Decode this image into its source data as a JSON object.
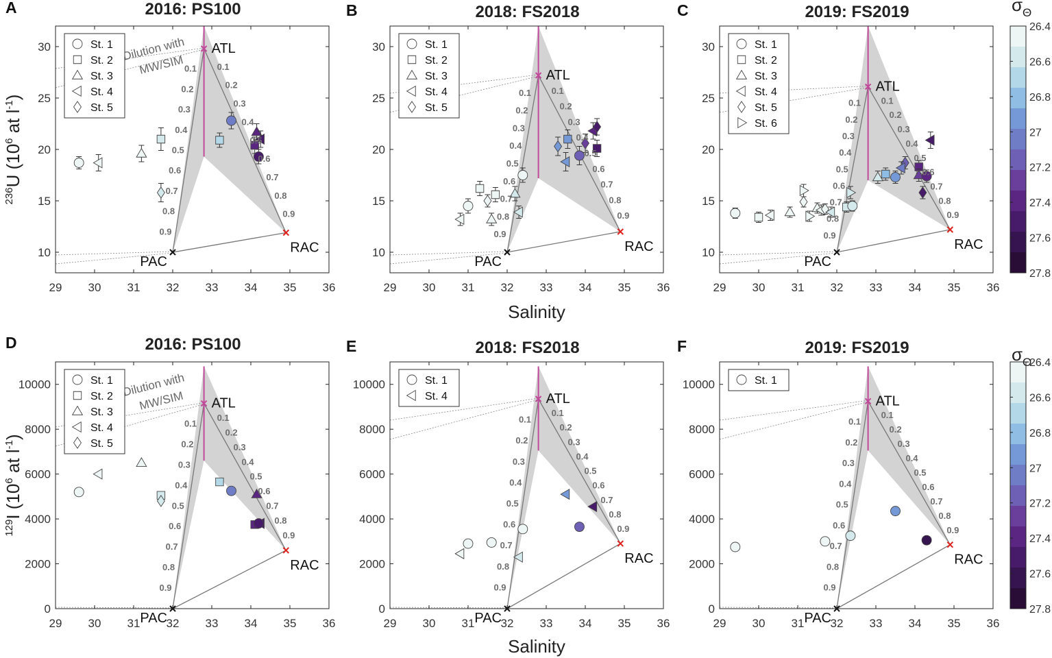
{
  "figure": {
    "xlabel": "Salinity",
    "endmembers": {
      "atl": "ATL",
      "pac": "PAC",
      "rac": "RAC"
    },
    "dilution_label": [
      "Dilution with",
      "MW/SIM"
    ],
    "fraction_labels": [
      "0.1",
      "0.2",
      "0.3",
      "0.4",
      "0.5",
      "0.6",
      "0.7",
      "0.8",
      "0.9"
    ],
    "colorbar": {
      "label": "σ",
      "sub": "Θ",
      "range": [
        26.4,
        27.8
      ],
      "ticks": [
        "26.4",
        "26.6",
        "26.8",
        "27",
        "27.2",
        "27.4",
        "27.6",
        "27.8"
      ],
      "colors": [
        "#edf6f4",
        "#d4e9ec",
        "#b3d8e8",
        "#8fbde3",
        "#7599d6",
        "#6f7dc6",
        "#6e60b4",
        "#6a3f9c",
        "#5a2682",
        "#481a6a",
        "#36144f",
        "#2a0d36"
      ]
    }
  },
  "chart_data": [
    {
      "panel": "A",
      "title": "2016: PS100",
      "type": "scatter",
      "ylabel_sup": "236",
      "ylabel": "U (10",
      "ylabel_sup2": "6",
      "ylabel_end": " at l",
      "ylabel_sup3": "-1",
      "ylabel_close": ")",
      "xlim": [
        29,
        36
      ],
      "ylim": [
        8,
        32
      ],
      "xticks": [
        29,
        30,
        31,
        32,
        33,
        34,
        35,
        36
      ],
      "yticks": [
        10,
        15,
        20,
        25,
        30
      ],
      "endmembers": {
        "atl": [
          32.8,
          29.8
        ],
        "pac": [
          32.0,
          10.0
        ],
        "rac": [
          34.9,
          11.9
        ]
      },
      "atl_range": [
        19.3,
        32.0
      ],
      "dilution": true,
      "legend": [
        "St. 1",
        "St. 2",
        "St. 3",
        "St. 4",
        "St. 5"
      ],
      "points": [
        {
          "st": 1,
          "x": 29.6,
          "y": 18.7,
          "err": 0.6,
          "sigma": 26.5
        },
        {
          "st": 4,
          "x": 30.1,
          "y": 18.7,
          "err": 0.8,
          "sigma": 26.5
        },
        {
          "st": 3,
          "x": 31.2,
          "y": 19.6,
          "err": 0.8,
          "sigma": 26.5
        },
        {
          "st": 2,
          "x": 31.7,
          "y": 21.0,
          "err": 1.1,
          "sigma": 26.55
        },
        {
          "st": 5,
          "x": 31.7,
          "y": 15.8,
          "err": 0.9,
          "sigma": 26.55
        },
        {
          "st": 2,
          "x": 33.2,
          "y": 20.9,
          "err": 0.7,
          "sigma": 26.7
        },
        {
          "st": 1,
          "x": 33.5,
          "y": 22.8,
          "err": 0.8,
          "sigma": 27.0
        },
        {
          "st": 3,
          "x": 34.15,
          "y": 21.7,
          "err": 0.8,
          "sigma": 27.4
        },
        {
          "st": 2,
          "x": 34.1,
          "y": 20.4,
          "err": 0.8,
          "sigma": 27.45
        },
        {
          "st": 4,
          "x": 34.25,
          "y": 21.0,
          "err": 0.8,
          "sigma": 27.5
        },
        {
          "st": 1,
          "x": 34.2,
          "y": 19.3,
          "err": 0.7,
          "sigma": 27.55
        }
      ]
    },
    {
      "panel": "B",
      "title": "2018: FS2018",
      "type": "scatter",
      "xlim": [
        29,
        36
      ],
      "ylim": [
        8,
        32
      ],
      "xticks": [
        29,
        30,
        31,
        32,
        33,
        34,
        35,
        36
      ],
      "yticks": [
        10,
        15,
        20,
        25,
        30
      ],
      "endmembers": {
        "atl": [
          32.8,
          27.2
        ],
        "pac": [
          32.0,
          10.0
        ],
        "rac": [
          34.9,
          12.0
        ]
      },
      "atl_range": [
        17.2,
        32.0
      ],
      "dilution": false,
      "legend": [
        "St. 1",
        "St. 2",
        "St. 3",
        "St. 4",
        "St. 5"
      ],
      "points": [
        {
          "st": 4,
          "x": 30.8,
          "y": 13.2,
          "err": 0.6,
          "sigma": 26.45
        },
        {
          "st": 1,
          "x": 31.0,
          "y": 14.5,
          "err": 0.7,
          "sigma": 26.45
        },
        {
          "st": 2,
          "x": 31.3,
          "y": 16.2,
          "err": 0.7,
          "sigma": 26.45
        },
        {
          "st": 5,
          "x": 31.5,
          "y": 15.0,
          "err": 0.6,
          "sigma": 26.5
        },
        {
          "st": 3,
          "x": 31.6,
          "y": 13.2,
          "err": 0.6,
          "sigma": 26.5
        },
        {
          "st": 2,
          "x": 31.7,
          "y": 15.6,
          "err": 0.7,
          "sigma": 26.5
        },
        {
          "st": 3,
          "x": 32.2,
          "y": 15.7,
          "err": 0.7,
          "sigma": 26.55
        },
        {
          "st": 4,
          "x": 32.3,
          "y": 13.9,
          "err": 0.6,
          "sigma": 26.55
        },
        {
          "st": 1,
          "x": 32.4,
          "y": 17.5,
          "err": 0.7,
          "sigma": 26.5
        },
        {
          "st": 5,
          "x": 33.3,
          "y": 20.3,
          "err": 0.9,
          "sigma": 26.9
        },
        {
          "st": 2,
          "x": 33.55,
          "y": 21.0,
          "err": 0.9,
          "sigma": 26.95
        },
        {
          "st": 4,
          "x": 33.5,
          "y": 18.8,
          "err": 0.9,
          "sigma": 26.95
        },
        {
          "st": 1,
          "x": 33.85,
          "y": 19.4,
          "err": 0.9,
          "sigma": 27.2
        },
        {
          "st": 5,
          "x": 34.0,
          "y": 20.6,
          "err": 0.9,
          "sigma": 27.3
        },
        {
          "st": 4,
          "x": 34.2,
          "y": 21.8,
          "err": 0.8,
          "sigma": 27.45
        },
        {
          "st": 5,
          "x": 34.3,
          "y": 22.2,
          "err": 0.8,
          "sigma": 27.5
        },
        {
          "st": 2,
          "x": 34.3,
          "y": 20.1,
          "err": 0.8,
          "sigma": 27.55
        }
      ]
    },
    {
      "panel": "C",
      "title": "2019: FS2019",
      "type": "scatter",
      "xlim": [
        29,
        36
      ],
      "ylim": [
        8,
        32
      ],
      "xticks": [
        29,
        30,
        31,
        32,
        33,
        34,
        35,
        36
      ],
      "yticks": [
        10,
        15,
        20,
        25,
        30
      ],
      "endmembers": {
        "atl": [
          32.8,
          26.1
        ],
        "pac": [
          32.0,
          10.0
        ],
        "rac": [
          34.9,
          12.2
        ]
      },
      "atl_range": [
        17.0,
        32.0
      ],
      "dilution": false,
      "legend": [
        "St. 1",
        "St. 2",
        "St. 3",
        "St. 4",
        "St. 5",
        "St. 6"
      ],
      "points": [
        {
          "st": 1,
          "x": 29.4,
          "y": 13.8,
          "err": 0.5,
          "sigma": 26.45
        },
        {
          "st": 2,
          "x": 30.0,
          "y": 13.4,
          "err": 0.5,
          "sigma": 26.45
        },
        {
          "st": 4,
          "x": 30.3,
          "y": 13.6,
          "err": 0.5,
          "sigma": 26.45
        },
        {
          "st": 3,
          "x": 30.8,
          "y": 13.9,
          "err": 0.5,
          "sigma": 26.45
        },
        {
          "st": 6,
          "x": 31.15,
          "y": 16.0,
          "err": 0.6,
          "sigma": 26.5
        },
        {
          "st": 5,
          "x": 31.15,
          "y": 14.9,
          "err": 0.5,
          "sigma": 26.5
        },
        {
          "st": 6,
          "x": 31.3,
          "y": 13.5,
          "err": 0.5,
          "sigma": 26.5
        },
        {
          "st": 3,
          "x": 31.5,
          "y": 14.3,
          "err": 0.5,
          "sigma": 26.5
        },
        {
          "st": 4,
          "x": 31.6,
          "y": 14.1,
          "err": 0.5,
          "sigma": 26.5
        },
        {
          "st": 5,
          "x": 31.7,
          "y": 14.2,
          "err": 0.5,
          "sigma": 26.5
        },
        {
          "st": 4,
          "x": 31.85,
          "y": 13.9,
          "err": 0.5,
          "sigma": 26.55
        },
        {
          "st": 2,
          "x": 32.25,
          "y": 14.4,
          "err": 0.5,
          "sigma": 26.55
        },
        {
          "st": 1,
          "x": 32.4,
          "y": 14.5,
          "err": 0.5,
          "sigma": 26.55
        },
        {
          "st": 6,
          "x": 32.35,
          "y": 15.8,
          "err": 0.6,
          "sigma": 26.55
        },
        {
          "st": 3,
          "x": 33.05,
          "y": 17.3,
          "err": 0.6,
          "sigma": 26.6
        },
        {
          "st": 2,
          "x": 33.25,
          "y": 17.6,
          "err": 0.6,
          "sigma": 26.75
        },
        {
          "st": 1,
          "x": 33.5,
          "y": 17.3,
          "err": 0.6,
          "sigma": 26.9
        },
        {
          "st": 5,
          "x": 33.75,
          "y": 18.7,
          "err": 0.6,
          "sigma": 27.15
        },
        {
          "st": 4,
          "x": 33.65,
          "y": 18.2,
          "err": 0.6,
          "sigma": 27.05
        },
        {
          "st": 2,
          "x": 34.1,
          "y": 18.3,
          "err": 0.6,
          "sigma": 27.35
        },
        {
          "st": 3,
          "x": 34.1,
          "y": 17.5,
          "err": 0.6,
          "sigma": 27.3
        },
        {
          "st": 1,
          "x": 34.3,
          "y": 17.4,
          "err": 0.6,
          "sigma": 27.45
        },
        {
          "st": 5,
          "x": 34.2,
          "y": 15.8,
          "err": 0.6,
          "sigma": 27.5
        },
        {
          "st": 4,
          "x": 34.4,
          "y": 20.9,
          "err": 0.8,
          "sigma": 27.55
        }
      ]
    },
    {
      "panel": "D",
      "title": "2016: PS100",
      "type": "scatter",
      "ylabel_sup": "129",
      "ylabel": "I (10",
      "ylabel_sup2": "6",
      "ylabel_end": " at l",
      "ylabel_sup3": "-1",
      "ylabel_close": ")",
      "xlim": [
        29,
        36
      ],
      "ylim": [
        0,
        11000
      ],
      "xticks": [
        29,
        30,
        31,
        32,
        33,
        34,
        35,
        36
      ],
      "yticks": [
        0,
        2000,
        4000,
        6000,
        8000,
        10000
      ],
      "endmembers": {
        "atl": [
          32.8,
          9150
        ],
        "pac": [
          32.0,
          0
        ],
        "rac": [
          34.9,
          2600
        ]
      },
      "atl_range": [
        6600,
        10800
      ],
      "dilution": true,
      "legend": [
        "St. 1",
        "St. 2",
        "St. 3",
        "St. 4",
        "St. 5"
      ],
      "points": [
        {
          "st": 1,
          "x": 29.6,
          "y": 5200,
          "err": 0,
          "sigma": 26.5
        },
        {
          "st": 4,
          "x": 30.1,
          "y": 6000,
          "err": 0,
          "sigma": 26.5
        },
        {
          "st": 3,
          "x": 31.2,
          "y": 6500,
          "err": 0,
          "sigma": 26.5
        },
        {
          "st": 2,
          "x": 31.7,
          "y": 5050,
          "err": 0,
          "sigma": 26.55
        },
        {
          "st": 5,
          "x": 31.7,
          "y": 4800,
          "err": 0,
          "sigma": 26.55
        },
        {
          "st": 2,
          "x": 33.2,
          "y": 5650,
          "err": 0,
          "sigma": 26.7
        },
        {
          "st": 1,
          "x": 33.5,
          "y": 5250,
          "err": 0,
          "sigma": 27.0
        },
        {
          "st": 3,
          "x": 34.15,
          "y": 5100,
          "err": 0,
          "sigma": 27.4
        },
        {
          "st": 2,
          "x": 34.1,
          "y": 3750,
          "err": 0,
          "sigma": 27.45
        },
        {
          "st": 4,
          "x": 34.25,
          "y": 3800,
          "err": 0,
          "sigma": 27.5
        },
        {
          "st": 1,
          "x": 34.2,
          "y": 3800,
          "err": 0,
          "sigma": 27.55
        }
      ]
    },
    {
      "panel": "E",
      "title": "2018: FS2018",
      "type": "scatter",
      "xlim": [
        29,
        36
      ],
      "ylim": [
        0,
        11000
      ],
      "xticks": [
        29,
        30,
        31,
        32,
        33,
        34,
        35,
        36
      ],
      "yticks": [
        0,
        2000,
        4000,
        6000,
        8000,
        10000
      ],
      "endmembers": {
        "atl": [
          32.8,
          9350
        ],
        "pac": [
          32.0,
          0
        ],
        "rac": [
          34.9,
          2900
        ]
      },
      "atl_range": [
        7050,
        10800
      ],
      "dilution": false,
      "legend": [
        "St. 1",
        "St. 4"
      ],
      "points": [
        {
          "st": 4,
          "x": 30.8,
          "y": 2450,
          "err": 0,
          "sigma": 26.45
        },
        {
          "st": 1,
          "x": 31.0,
          "y": 2900,
          "err": 0,
          "sigma": 26.45
        },
        {
          "st": 1,
          "x": 31.6,
          "y": 2950,
          "err": 0,
          "sigma": 26.5
        },
        {
          "st": 4,
          "x": 32.3,
          "y": 2300,
          "err": 0,
          "sigma": 26.55
        },
        {
          "st": 1,
          "x": 32.4,
          "y": 3550,
          "err": 0,
          "sigma": 26.5
        },
        {
          "st": 4,
          "x": 33.5,
          "y": 5100,
          "err": 0,
          "sigma": 26.95
        },
        {
          "st": 1,
          "x": 33.85,
          "y": 3650,
          "err": 0,
          "sigma": 27.2
        },
        {
          "st": 4,
          "x": 34.2,
          "y": 4550,
          "err": 0,
          "sigma": 27.5
        }
      ]
    },
    {
      "panel": "F",
      "title": "2019: FS2019",
      "type": "scatter",
      "xlim": [
        29,
        36
      ],
      "ylim": [
        0,
        11000
      ],
      "xticks": [
        29,
        30,
        31,
        32,
        33,
        34,
        35,
        36
      ],
      "yticks": [
        0,
        2000,
        4000,
        6000,
        8000,
        10000
      ],
      "endmembers": {
        "atl": [
          32.8,
          9250
        ],
        "pac": [
          32.0,
          0
        ],
        "rac": [
          34.9,
          2850
        ]
      },
      "atl_range": [
        7050,
        10800
      ],
      "dilution": false,
      "legend": [
        "St. 1"
      ],
      "points": [
        {
          "st": 1,
          "x": 29.4,
          "y": 2750,
          "err": 0,
          "sigma": 26.45
        },
        {
          "st": 1,
          "x": 31.7,
          "y": 3000,
          "err": 0,
          "sigma": 26.5
        },
        {
          "st": 1,
          "x": 32.35,
          "y": 3250,
          "err": 0,
          "sigma": 26.55
        },
        {
          "st": 1,
          "x": 33.5,
          "y": 4350,
          "err": 0,
          "sigma": 26.9
        },
        {
          "st": 1,
          "x": 34.3,
          "y": 3050,
          "err": 0,
          "sigma": 27.6
        }
      ]
    }
  ]
}
